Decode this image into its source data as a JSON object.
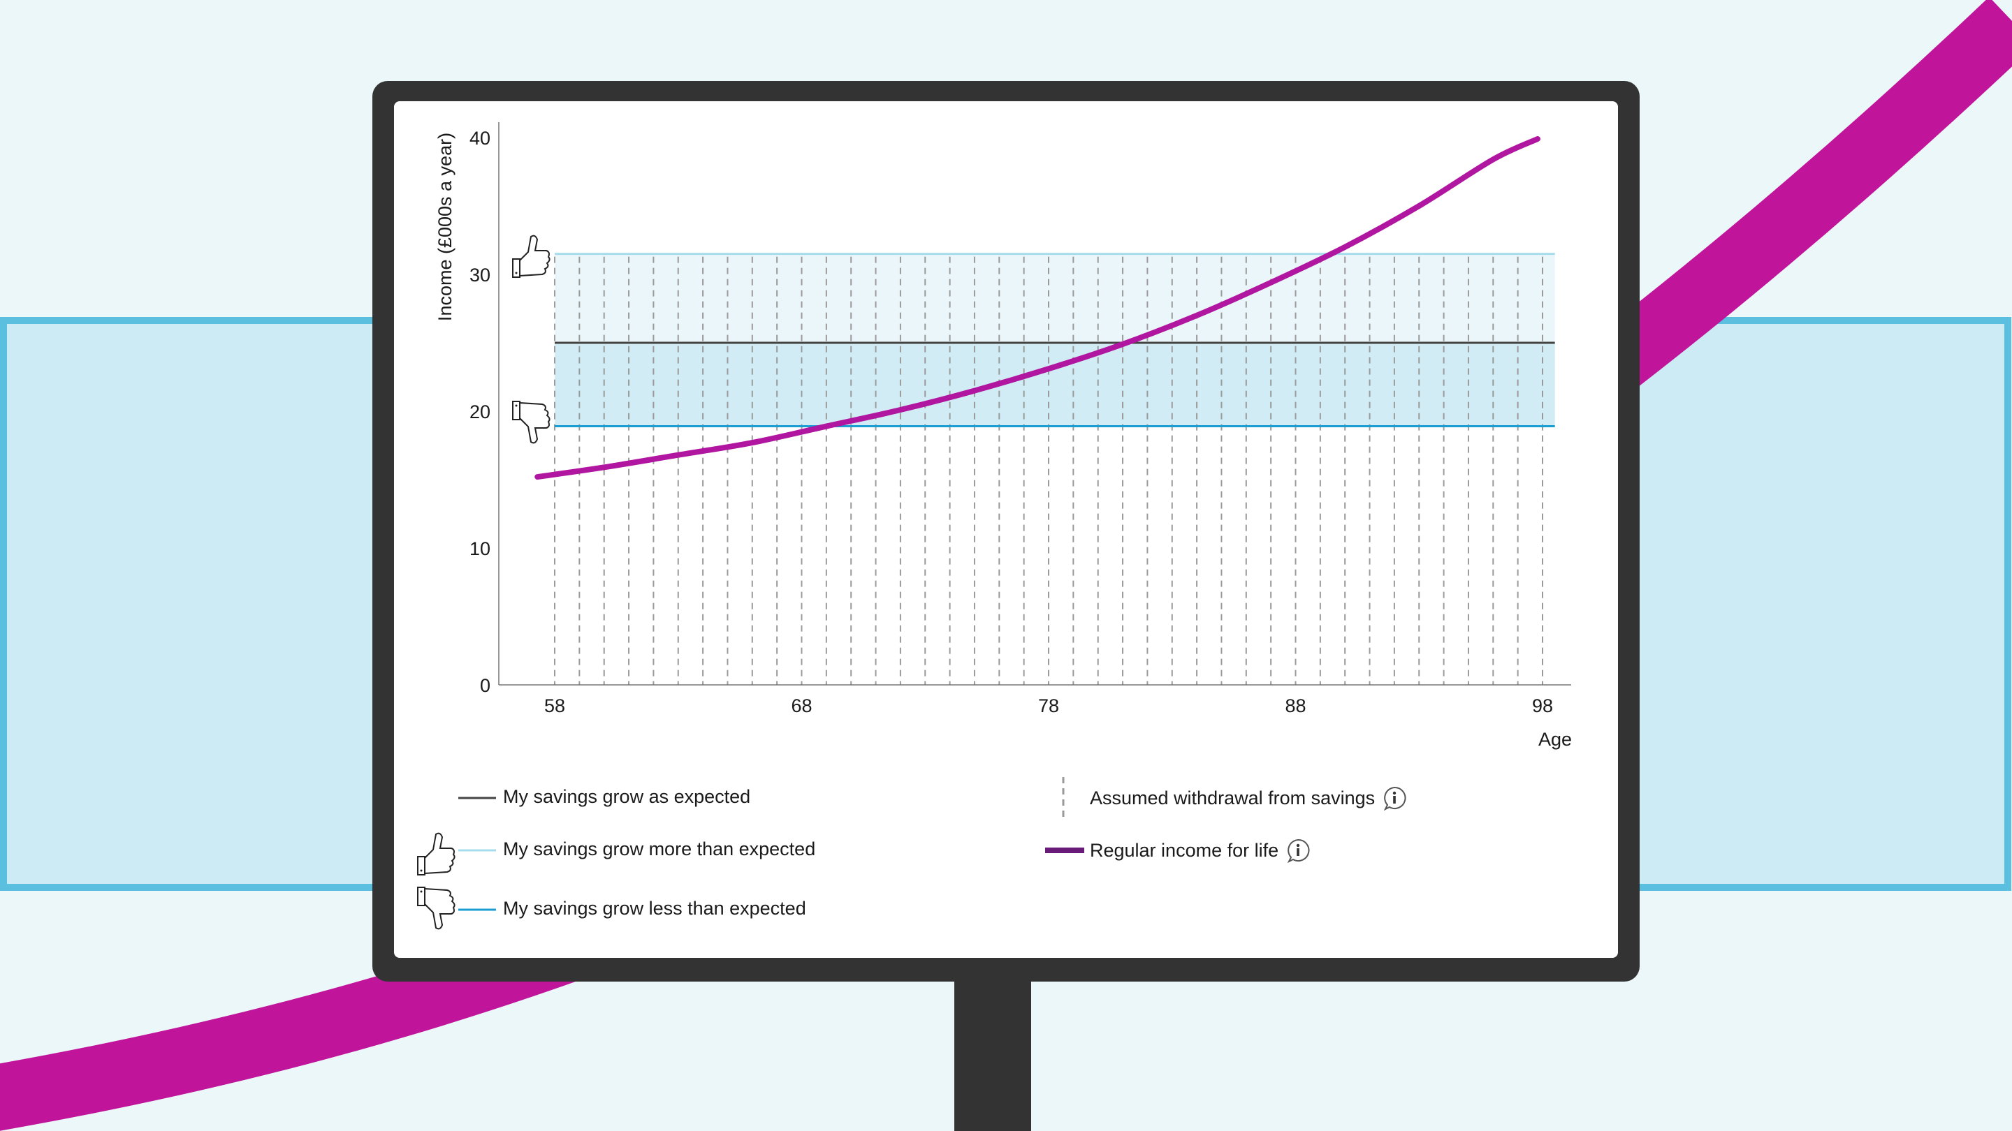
{
  "colors": {
    "background": "#ecf7fa",
    "band_fill": "#cdebf4",
    "band_border": "#5bbfe0",
    "swoosh": "#c0149b",
    "monitor": "#333333",
    "expected_line": "#444444",
    "more_line": "#a6dcec",
    "less_line": "#1a9dd0",
    "income_line": "#b0169f",
    "legend_income": "#6a1b7a",
    "upper_fill": "#eaf6fa",
    "lower_fill": "#d2ecf5",
    "withdrawal_dash": "#9a9a9a"
  },
  "chart_data": {
    "type": "line",
    "ylabel": "Income (£000s a year)",
    "xlabel": "Age",
    "xlim": [
      56,
      99
    ],
    "ylim": [
      0,
      40
    ],
    "x_ticks": [
      58,
      68,
      78,
      88,
      98
    ],
    "y_ticks": [
      0,
      10,
      20,
      30,
      40
    ],
    "withdrawal_ages": [
      58,
      59,
      60,
      61,
      62,
      63,
      64,
      65,
      66,
      67,
      68,
      69,
      70,
      71,
      72,
      73,
      74,
      75,
      76,
      77,
      78,
      79,
      80,
      81,
      82,
      83,
      84,
      85,
      86,
      87,
      88,
      89,
      90,
      91,
      92,
      93,
      94,
      95,
      96,
      97,
      98
    ],
    "series": [
      {
        "name": "My savings grow more than expected",
        "x": [
          58,
          98.5
        ],
        "y": [
          31.5,
          31.5
        ]
      },
      {
        "name": "My savings grow as expected",
        "x": [
          58,
          98.5
        ],
        "y": [
          25.0,
          25.0
        ]
      },
      {
        "name": "My savings grow less than expected",
        "x": [
          58,
          98.5
        ],
        "y": [
          18.9,
          18.9
        ]
      },
      {
        "name": "Regular income for life",
        "x": [
          57.3,
          60,
          63,
          66,
          69,
          72,
          75,
          78,
          81,
          84,
          87,
          90,
          93,
          96,
          97.8
        ],
        "y": [
          15.2,
          15.9,
          16.8,
          17.7,
          18.9,
          20.1,
          21.5,
          23.1,
          24.9,
          27.0,
          29.4,
          32.0,
          35.0,
          38.4,
          39.9
        ]
      }
    ]
  },
  "legend": {
    "expected": "My savings grow as expected",
    "more": "My savings grow more than expected",
    "less": "My savings grow less than expected",
    "withdrawal": "Assumed withdrawal from savings",
    "income": "Regular income for life"
  },
  "icons": {
    "thumbs_up": "thumbs-up-icon",
    "thumbs_down": "thumbs-down-icon",
    "info": "info-icon"
  }
}
